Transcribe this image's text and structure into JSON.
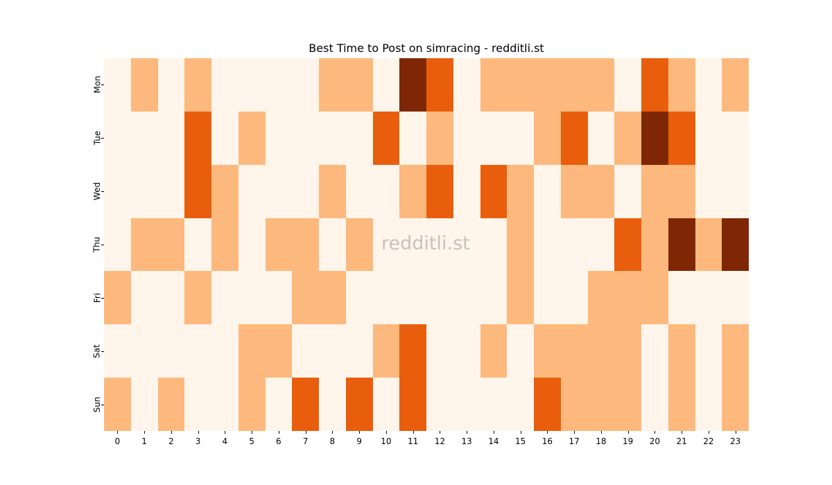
{
  "chart_data": {
    "type": "heatmap",
    "title": "Best Time to Post on simracing - redditli.st",
    "xlabel": "",
    "ylabel": "",
    "x": [
      "0",
      "1",
      "2",
      "3",
      "4",
      "5",
      "6",
      "7",
      "8",
      "9",
      "10",
      "11",
      "12",
      "13",
      "14",
      "15",
      "16",
      "17",
      "18",
      "19",
      "20",
      "21",
      "22",
      "23"
    ],
    "y": [
      "Mon",
      "Tue",
      "Wed",
      "Thu",
      "Fri",
      "Sat",
      "Sun"
    ],
    "colormap": "Oranges",
    "levels": {
      "0": "#fff5eb",
      "1": "#fdb97d",
      "2": "#e95e0d",
      "3": "#7f2704"
    },
    "values": [
      [
        0,
        1,
        0,
        1,
        0,
        0,
        0,
        0,
        1,
        1,
        0,
        3,
        2,
        0,
        1,
        1,
        1,
        1,
        1,
        0,
        2,
        1,
        0,
        1
      ],
      [
        0,
        0,
        0,
        2,
        0,
        1,
        0,
        0,
        0,
        0,
        2,
        0,
        1,
        0,
        0,
        0,
        1,
        2,
        0,
        1,
        3,
        2,
        0,
        0
      ],
      [
        0,
        0,
        0,
        2,
        1,
        0,
        0,
        0,
        1,
        0,
        0,
        1,
        2,
        0,
        2,
        1,
        0,
        1,
        1,
        0,
        1,
        1,
        0,
        0
      ],
      [
        0,
        1,
        1,
        0,
        1,
        0,
        1,
        1,
        0,
        1,
        0,
        0,
        0,
        0,
        0,
        1,
        0,
        0,
        0,
        2,
        1,
        3,
        1,
        3
      ],
      [
        1,
        0,
        0,
        1,
        0,
        0,
        0,
        1,
        1,
        0,
        0,
        0,
        0,
        0,
        0,
        1,
        0,
        0,
        1,
        1,
        1,
        0,
        0,
        0
      ],
      [
        0,
        0,
        0,
        0,
        0,
        1,
        1,
        0,
        0,
        0,
        1,
        2,
        0,
        0,
        1,
        0,
        1,
        1,
        1,
        1,
        0,
        1,
        0,
        1
      ],
      [
        1,
        0,
        1,
        0,
        0,
        1,
        0,
        2,
        0,
        2,
        0,
        2,
        0,
        0,
        0,
        0,
        2,
        1,
        1,
        1,
        0,
        1,
        0,
        1
      ]
    ],
    "grid": false,
    "colorbar": false,
    "watermark": "redditli.st"
  }
}
